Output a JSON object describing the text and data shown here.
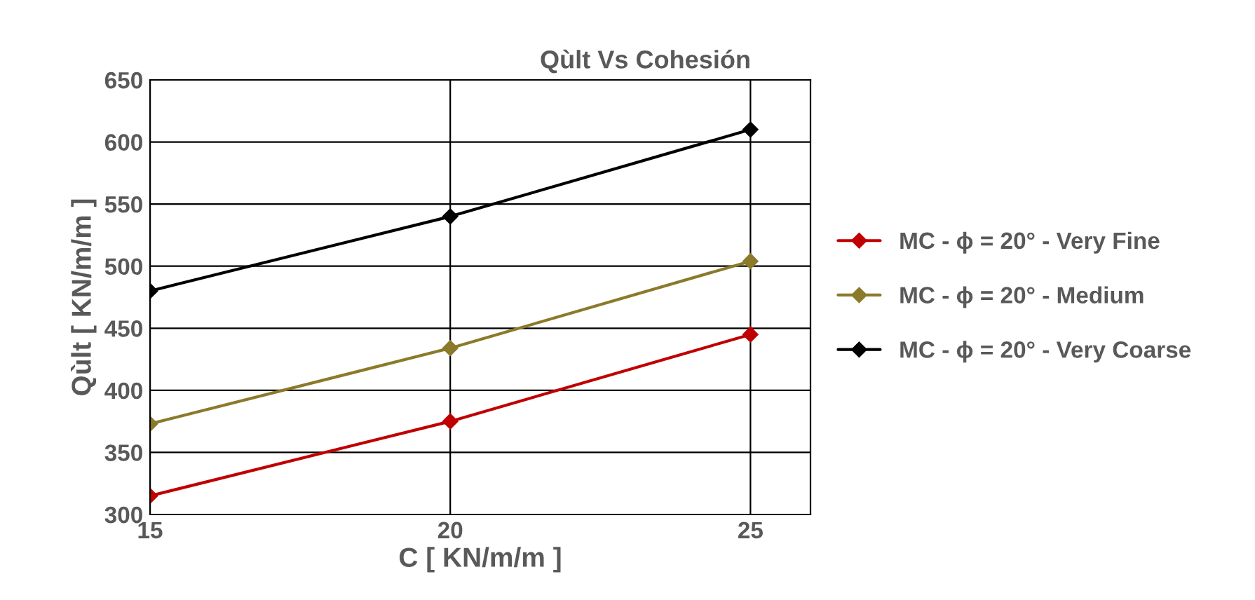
{
  "chart_data": {
    "type": "line",
    "title": "Qùlt Vs Cohesión",
    "xlabel": "C [ KN/m/m ]",
    "ylabel": "Qùlt [ KN/m/m ]",
    "x": [
      15,
      20,
      25
    ],
    "series": [
      {
        "name": "MC - ϕ = 20° - Very Fine",
        "color": "#c00000",
        "values": [
          315,
          375,
          445
        ]
      },
      {
        "name": "MC - ϕ = 20° - Medium",
        "color": "#8b7a2a",
        "values": [
          373,
          434,
          504
        ]
      },
      {
        "name": "MC - ϕ = 20° - Very Coarse",
        "color": "#000000",
        "values": [
          480,
          540,
          610
        ]
      }
    ],
    "xlim": [
      15,
      26
    ],
    "xticks": [
      15,
      20,
      25
    ],
    "ylim": [
      300,
      650
    ],
    "yticks": [
      300,
      350,
      400,
      450,
      500,
      550,
      600,
      650
    ],
    "grid": true,
    "legend": "right",
    "marker": "diamond",
    "line_style": "solid"
  }
}
